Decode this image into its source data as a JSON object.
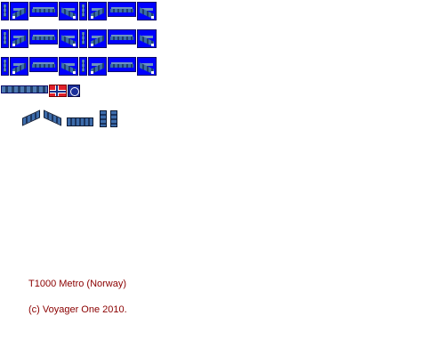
{
  "graphics": {
    "sprite_rows": 3,
    "sheet_description_icons": [
      "vertical-train-icon",
      "train-carriage-icon"
    ],
    "flag": "norway-flag",
    "logo": "metro-logo"
  },
  "credits": {
    "title": "T1000 Metro (Norway)",
    "copyright": "(c) Voyager One 2010."
  },
  "colors": {
    "tile_background": "#0000ff",
    "caption_text": "#8b0000",
    "train_body": "#3b6ea8"
  }
}
